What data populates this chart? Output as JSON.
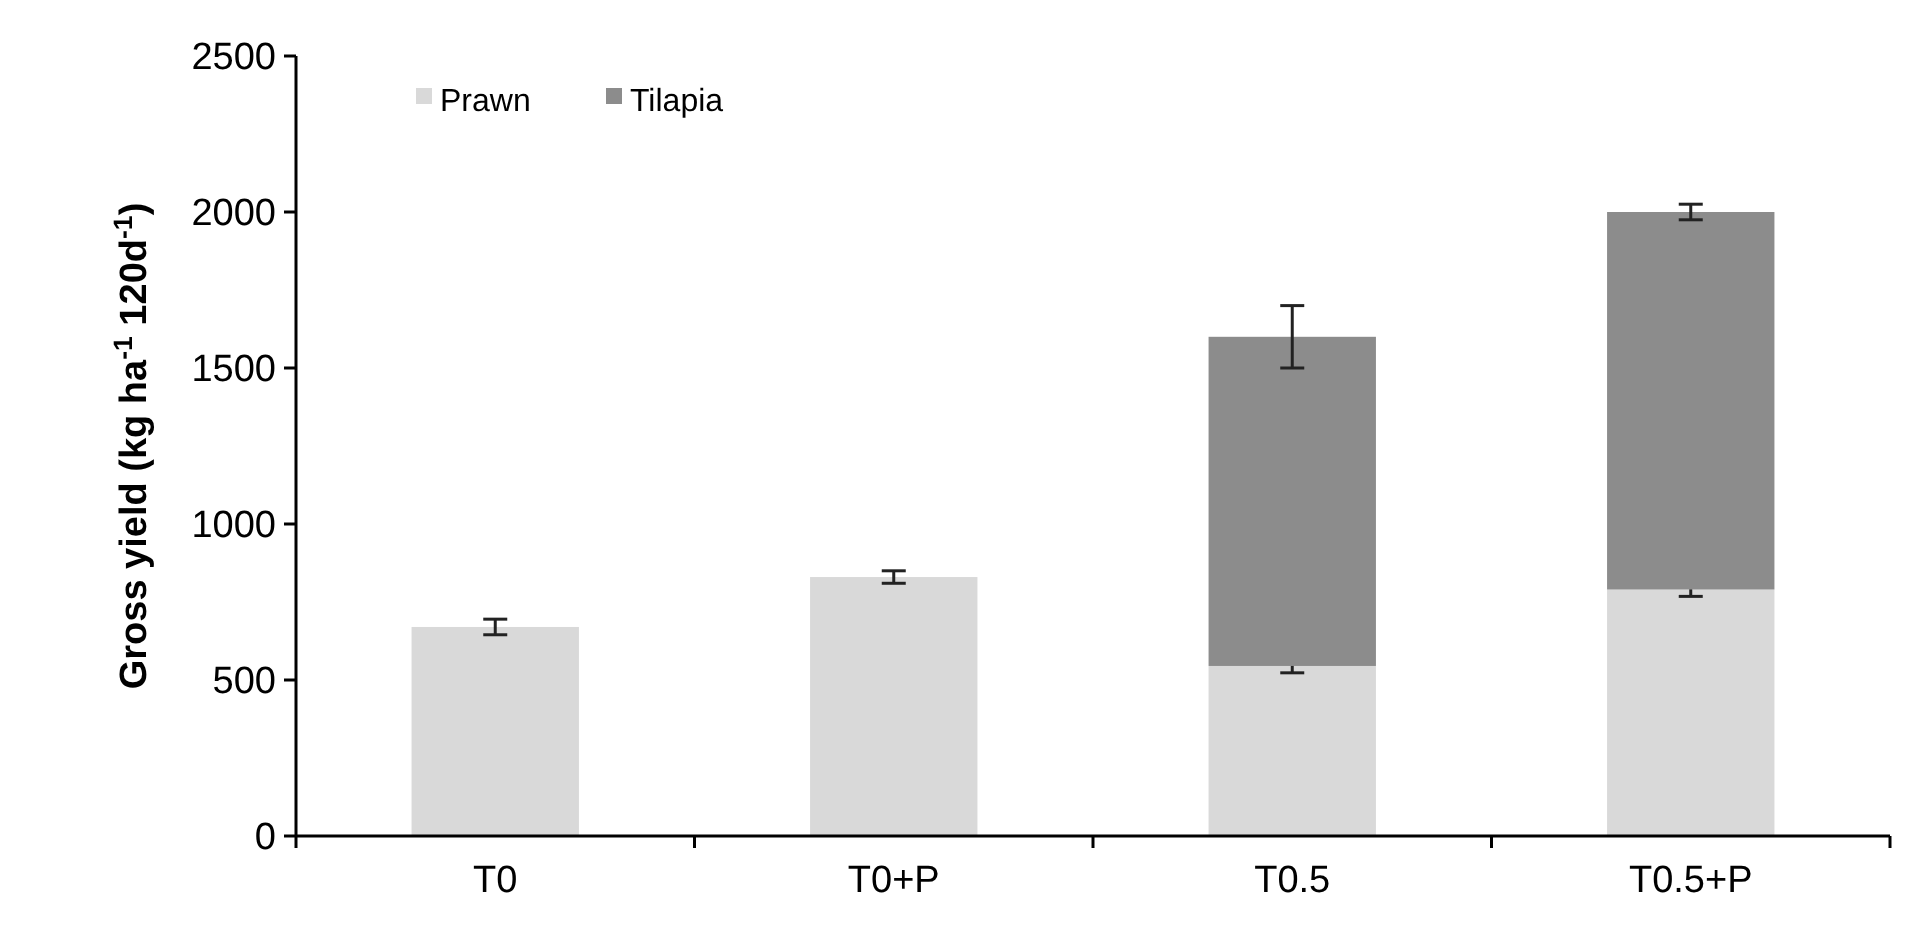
{
  "chart_data": {
    "type": "bar",
    "stacked": true,
    "ylabel": "Gross yield (kg ha$^{-1}$ 120d$^{-1}$)",
    "categories": [
      "T0",
      "T0+P",
      "T0.5",
      "T0.5+P"
    ],
    "series": [
      {
        "name": "Prawn",
        "color": "#d9d9d9",
        "values": [
          670,
          830,
          545,
          790
        ],
        "errors": [
          25,
          20,
          22,
          22
        ]
      },
      {
        "name": "Tilapia",
        "color": "#8c8c8c",
        "values": [
          0,
          0,
          1055,
          1210
        ],
        "errors": [
          null,
          null,
          100,
          25
        ]
      }
    ],
    "ylim": [
      0,
      2500
    ],
    "yticks": [
      0,
      500,
      1000,
      1500,
      2000,
      2500
    ],
    "grid": false,
    "legend": "top left"
  }
}
